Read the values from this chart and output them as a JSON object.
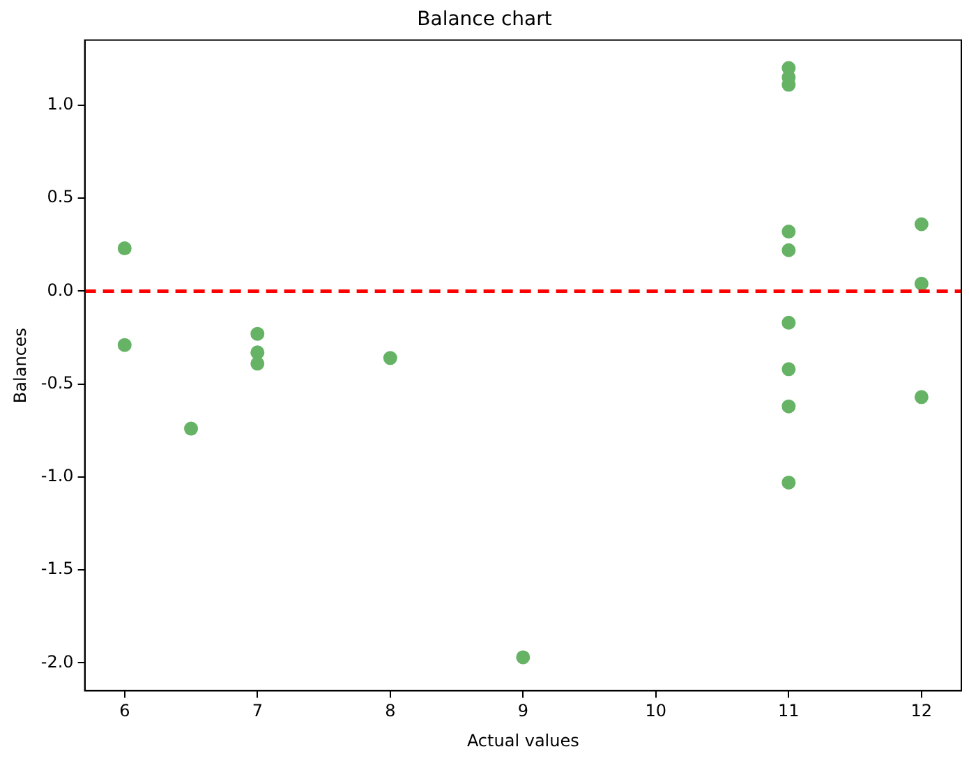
{
  "chart_data": {
    "type": "scatter",
    "title": "Balance chart",
    "xlabel": "Actual values",
    "ylabel": "Balances",
    "x": [
      6,
      6,
      6.5,
      7,
      7,
      7,
      8,
      9,
      11,
      11,
      11,
      11,
      11,
      11,
      11,
      11,
      11,
      12,
      12,
      12
    ],
    "values": [
      0.23,
      -0.29,
      -0.74,
      -0.23,
      -0.33,
      -0.39,
      -0.36,
      -1.97,
      1.2,
      1.15,
      1.11,
      0.32,
      0.22,
      -0.17,
      -0.42,
      -0.62,
      -1.03,
      0.36,
      0.04,
      -0.57
    ],
    "color": "#66b366",
    "marker": "circle",
    "grid": false,
    "xlim": [
      5.7,
      12.3
    ],
    "xticks": [
      6,
      7,
      8,
      9,
      10,
      11,
      12
    ],
    "ylim": [
      -2.15,
      1.35
    ],
    "yticks": [
      {
        "value": -2,
        "label": "-2.0"
      },
      -1.5,
      {
        "value": -1,
        "label": "-1.0"
      },
      -0.5,
      {
        "value": 0,
        "label": "0.0"
      },
      0.5,
      {
        "value": 1,
        "label": "1.0"
      }
    ],
    "ref_lines": [
      {
        "axis": "y",
        "value": 0,
        "color": "#ff0000",
        "line_style": "dashed"
      }
    ]
  }
}
